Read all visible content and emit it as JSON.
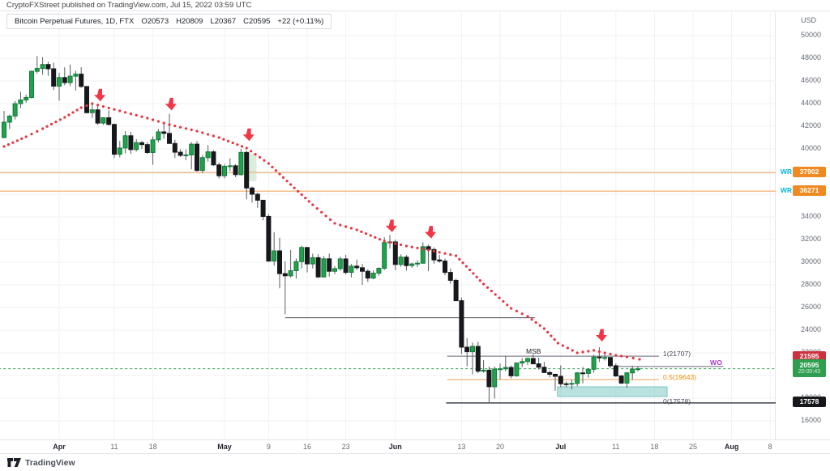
{
  "published_bar": {
    "text": "CryptoFXStreet published on TradingView.com, Jul 15, 2022 03:59 UTC"
  },
  "legend": {
    "title": "Bitcoin Perpetual Futures, 1D, FTX",
    "open": "O20573",
    "high": "H20809",
    "low": "L20367",
    "close": "C20595",
    "change": "+22 (+0.11%)"
  },
  "price_axis": {
    "currency": "USD",
    "tick_labels": [
      50000,
      48000,
      46000,
      44000,
      42000,
      40000,
      36000,
      34000,
      32000,
      30000,
      28000,
      26000,
      24000,
      22000,
      18000,
      16000
    ],
    "wr_labels": [
      {
        "text": "WR",
        "price": 37902
      },
      {
        "text": "WR",
        "price": 36271
      }
    ],
    "badges": [
      {
        "text": "37902",
        "price": 37902,
        "style": "orange"
      },
      {
        "text": "36271",
        "price": 36271,
        "style": "orange"
      },
      {
        "text": "21595",
        "price": 21595,
        "style": "red"
      },
      {
        "text": "20595",
        "sub": "20:00:43",
        "price": 20595,
        "style": "green"
      },
      {
        "text": "17578",
        "price": 17578,
        "style": "black"
      }
    ]
  },
  "time_axis": {
    "ticks": [
      {
        "label": "Apr",
        "day": 10,
        "major": true
      },
      {
        "label": "11",
        "day": 20,
        "major": false
      },
      {
        "label": "18",
        "day": 27,
        "major": false
      },
      {
        "label": "May",
        "day": 40,
        "major": true
      },
      {
        "label": "9",
        "day": 48,
        "major": false
      },
      {
        "label": "16",
        "day": 55,
        "major": false
      },
      {
        "label": "23",
        "day": 62,
        "major": false
      },
      {
        "label": "Jun",
        "day": 71,
        "major": true
      },
      {
        "label": "13",
        "day": 83,
        "major": false
      },
      {
        "label": "20",
        "day": 90,
        "major": false
      },
      {
        "label": "Jul",
        "day": 101,
        "major": true
      },
      {
        "label": "11",
        "day": 111,
        "major": false
      },
      {
        "label": "18",
        "day": 118,
        "major": false
      },
      {
        "label": "25",
        "day": 125,
        "major": false
      },
      {
        "label": "Aug",
        "day": 132,
        "major": true
      },
      {
        "label": "8",
        "day": 139,
        "major": false
      }
    ]
  },
  "annotations": {
    "msb": "MSB",
    "fib1": "1(21707)",
    "fib05": "0.5(19643)",
    "fib0": "0(17578)",
    "wo": "WO"
  },
  "footer": {
    "brand": "TradingView"
  },
  "chart_data": {
    "type": "candlestick",
    "title": "Bitcoin Perpetual Futures, 1D, FTX",
    "start_date": "2022-03-22",
    "interval": "1D",
    "ylim": [
      15800,
      50500
    ],
    "grid_prices": [
      50000,
      48000,
      46000,
      44000,
      42000,
      40000,
      38000,
      36000,
      34000,
      32000,
      30000,
      28000,
      26000,
      24000,
      22000,
      20000,
      18000,
      16000
    ],
    "colors": {
      "up": "#22a04c",
      "up_border": "#0e7d38",
      "down": "#17181b",
      "wick": "#5a5d63",
      "ma": "#e8343f",
      "arrow": "#f23645",
      "grid": "#f1f2f4",
      "wr_line": "#f6bd8b",
      "fib_mid": "#f6bd8b",
      "structure": "#4a4e57",
      "msb_line": "#83868f",
      "current": "#2f9e4f",
      "accent_cyan": "#00b7d8",
      "accent_purple": "#a832d4"
    },
    "candles": [
      [
        41000,
        43360,
        40950,
        42360
      ],
      [
        42360,
        43030,
        41750,
        42900
      ],
      [
        42900,
        44220,
        42600,
        43990
      ],
      [
        43990,
        45050,
        43600,
        44320
      ],
      [
        44320,
        44790,
        44080,
        44540
      ],
      [
        44540,
        46900,
        44440,
        46850
      ],
      [
        46850,
        48200,
        46660,
        47100
      ],
      [
        47100,
        48100,
        46550,
        47450
      ],
      [
        47450,
        47700,
        46450,
        47070
      ],
      [
        47070,
        47600,
        45200,
        45540
      ],
      [
        45540,
        46720,
        44250,
        46300
      ],
      [
        46300,
        47200,
        45620,
        45850
      ],
      [
        45850,
        47450,
        45550,
        46420
      ],
      [
        46420,
        46890,
        45150,
        46600
      ],
      [
        46600,
        47200,
        45400,
        45510
      ],
      [
        45510,
        45520,
        43120,
        43200
      ],
      [
        43200,
        43900,
        42730,
        43450
      ],
      [
        43450,
        43970,
        42110,
        42280
      ],
      [
        42280,
        42800,
        42130,
        42750
      ],
      [
        42750,
        43420,
        42070,
        42160
      ],
      [
        42160,
        42250,
        39200,
        39530
      ],
      [
        39530,
        40700,
        39250,
        40080
      ],
      [
        40080,
        41560,
        39600,
        41160
      ],
      [
        41160,
        41500,
        39550,
        39940
      ],
      [
        39940,
        40870,
        39770,
        40550
      ],
      [
        40550,
        40700,
        40000,
        40380
      ],
      [
        40380,
        40600,
        39550,
        39680
      ],
      [
        39680,
        41100,
        38600,
        40800
      ],
      [
        40800,
        41760,
        40570,
        41500
      ],
      [
        41500,
        42200,
        40900,
        41370
      ],
      [
        41370,
        43100,
        40800,
        40480
      ],
      [
        40480,
        40800,
        39200,
        39710
      ],
      [
        39710,
        39980,
        39280,
        39430
      ],
      [
        39430,
        39940,
        39000,
        39470
      ],
      [
        39470,
        40600,
        38200,
        40420
      ],
      [
        40420,
        40700,
        37990,
        38100
      ],
      [
        38100,
        39470,
        37880,
        39230
      ],
      [
        39230,
        40350,
        38880,
        39740
      ],
      [
        39740,
        39900,
        38500,
        38590
      ],
      [
        38590,
        38790,
        37390,
        37630
      ],
      [
        37630,
        38670,
        37400,
        38470
      ],
      [
        38470,
        39170,
        38050,
        38510
      ],
      [
        38510,
        38650,
        37500,
        37730
      ],
      [
        37730,
        40000,
        37650,
        39690
      ],
      [
        39690,
        39840,
        35550,
        36550
      ],
      [
        36550,
        36680,
        35250,
        36000
      ],
      [
        36000,
        36130,
        34800,
        35470
      ],
      [
        35470,
        35500,
        33700,
        34040
      ],
      [
        34040,
        34240,
        30030,
        30100
      ],
      [
        30100,
        32660,
        29700,
        31000
      ],
      [
        31000,
        32160,
        27700,
        28990
      ],
      [
        28990,
        30080,
        25400,
        28800
      ],
      [
        28800,
        31080,
        28650,
        29250
      ],
      [
        29250,
        30340,
        28550,
        30050
      ],
      [
        30050,
        31460,
        29450,
        31300
      ],
      [
        31300,
        31330,
        29100,
        29850
      ],
      [
        29850,
        30760,
        29450,
        30400
      ],
      [
        30400,
        30700,
        28600,
        28700
      ],
      [
        28700,
        30550,
        28630,
        30300
      ],
      [
        30300,
        30750,
        28730,
        29200
      ],
      [
        29200,
        29650,
        28950,
        29430
      ],
      [
        29430,
        30490,
        29250,
        30290
      ],
      [
        30290,
        30650,
        28900,
        29100
      ],
      [
        29100,
        29850,
        28650,
        29650
      ],
      [
        29650,
        30230,
        29300,
        29510
      ],
      [
        29510,
        29860,
        28000,
        29200
      ],
      [
        29200,
        29370,
        28250,
        28600
      ],
      [
        28600,
        29270,
        28500,
        29030
      ],
      [
        29030,
        29550,
        28800,
        29460
      ],
      [
        29460,
        32200,
        29300,
        31730
      ],
      [
        31730,
        32400,
        31200,
        31790
      ],
      [
        31790,
        31980,
        29300,
        29800
      ],
      [
        29800,
        30690,
        29600,
        30450
      ],
      [
        30450,
        30630,
        29250,
        29700
      ],
      [
        29700,
        29950,
        29480,
        29850
      ],
      [
        29850,
        30170,
        29560,
        29910
      ],
      [
        29910,
        31750,
        29900,
        31370
      ],
      [
        31370,
        31560,
        29200,
        31120
      ],
      [
        31120,
        31310,
        29870,
        30200
      ],
      [
        30200,
        30650,
        29950,
        30100
      ],
      [
        30100,
        30320,
        28850,
        29100
      ],
      [
        29100,
        29450,
        28100,
        28400
      ],
      [
        28400,
        28550,
        26600,
        26600
      ],
      [
        26600,
        26890,
        21900,
        22500
      ],
      [
        22500,
        23300,
        20800,
        22100
      ],
      [
        22100,
        22900,
        20100,
        22570
      ],
      [
        22570,
        22980,
        20200,
        20380
      ],
      [
        20380,
        21350,
        20250,
        20470
      ],
      [
        20470,
        20790,
        17600,
        19010
      ],
      [
        19010,
        20800,
        17960,
        20570
      ],
      [
        20570,
        21060,
        19650,
        20590
      ],
      [
        20590,
        21720,
        20370,
        20710
      ],
      [
        20710,
        20880,
        19750,
        19970
      ],
      [
        19970,
        21180,
        19890,
        21100
      ],
      [
        21100,
        21540,
        20740,
        21230
      ],
      [
        21230,
        21590,
        20930,
        21500
      ],
      [
        21500,
        21880,
        20990,
        21030
      ],
      [
        21030,
        21570,
        20510,
        20730
      ],
      [
        20730,
        21200,
        20210,
        20260
      ],
      [
        20260,
        20430,
        19850,
        20110
      ],
      [
        20110,
        20150,
        18650,
        19930
      ],
      [
        19930,
        20900,
        18970,
        19270
      ],
      [
        19270,
        19470,
        18980,
        19240
      ],
      [
        19240,
        19650,
        18780,
        19300
      ],
      [
        19300,
        20320,
        19060,
        20230
      ],
      [
        20230,
        20750,
        19300,
        20190
      ],
      [
        20190,
        20650,
        19800,
        20550
      ],
      [
        20550,
        21850,
        20250,
        21630
      ],
      [
        21630,
        22500,
        21200,
        21590
      ],
      [
        21590,
        21950,
        21320,
        21590
      ],
      [
        21590,
        21600,
        20660,
        20860
      ],
      [
        20860,
        21060,
        19880,
        19960
      ],
      [
        19960,
        20050,
        19240,
        19330
      ],
      [
        19330,
        20340,
        18910,
        20230
      ],
      [
        20230,
        20860,
        19620,
        20570
      ],
      [
        20573,
        20809,
        20367,
        20595
      ]
    ],
    "ma_dots": [
      [
        0,
        40214
      ],
      [
        4,
        41071
      ],
      [
        7,
        41786
      ],
      [
        11,
        42786
      ],
      [
        14,
        43643
      ],
      [
        16,
        44000
      ],
      [
        21,
        43357
      ],
      [
        26,
        42714
      ],
      [
        30,
        42143
      ],
      [
        35,
        41571
      ],
      [
        39,
        41000
      ],
      [
        44,
        40071
      ],
      [
        48,
        38714
      ],
      [
        52,
        36857
      ],
      [
        56,
        35071
      ],
      [
        60,
        33429
      ],
      [
        64,
        32857
      ],
      [
        69,
        31857
      ],
      [
        73,
        31429
      ],
      [
        77,
        31071
      ],
      [
        82,
        30571
      ],
      [
        87,
        28071
      ],
      [
        92,
        25929
      ],
      [
        95,
        25214
      ],
      [
        98,
        24143
      ],
      [
        100.5,
        22857
      ],
      [
        104,
        22000
      ],
      [
        107,
        22214
      ],
      [
        111,
        21786
      ],
      [
        113,
        21643
      ],
      [
        115.3,
        21429
      ]
    ],
    "arrows": [
      [
        17.5,
        44200
      ],
      [
        30.4,
        43400
      ],
      [
        44.5,
        40700
      ],
      [
        70.4,
        32650
      ],
      [
        77.5,
        32100
      ],
      [
        108.5,
        23000
      ]
    ],
    "levels": [
      {
        "name": "weekly-resistance-1",
        "price": 37902,
        "d1": -1,
        "d2": 141,
        "color": "#f6bd8b",
        "width": 1.5
      },
      {
        "name": "weekly-resistance-2",
        "price": 36271,
        "d1": -1,
        "d2": 141,
        "color": "#f6bd8b",
        "width": 1.5
      },
      {
        "name": "may-low-support",
        "price": 25100,
        "d1": 51,
        "d2": 96.3,
        "color": "#4a4e57",
        "width": 1
      },
      {
        "name": "msb-fib-1",
        "price": 21707,
        "d1": 80.4,
        "d2": 118.8,
        "color": "#83868f",
        "width": 1.2
      },
      {
        "name": "fib-0-5",
        "price": 19643,
        "d1": 80.4,
        "d2": 118.8,
        "color": "#f6bd8b",
        "width": 1.5
      },
      {
        "name": "fib-0",
        "price": 17578,
        "d1": 80.2,
        "d2": 141,
        "color": "#3f434c",
        "width": 1.5
      },
      {
        "name": "wo-level",
        "price": 20800,
        "d1": 110.8,
        "d2": 130.5,
        "color": "#7a7e87",
        "width": 1.2
      },
      {
        "name": "current-price-line",
        "price": 20595,
        "d1": -1,
        "d2": 141,
        "color": "#2f9e4f",
        "width": 1,
        "dash": "3,3"
      }
    ],
    "zones": [
      {
        "name": "demand-zone",
        "d1": 100.4,
        "d2": 120.3,
        "p1": 19000,
        "p2": 18150,
        "fill": "rgba(128,203,196,0.55)",
        "stroke": "#7fc6bc"
      },
      {
        "name": "supply-highlight",
        "d1": 43.9,
        "d2": 45.8,
        "p1": 39600,
        "p2": 37150,
        "fill": "rgba(139,195,143,0.30)",
        "stroke": "none"
      }
    ]
  }
}
